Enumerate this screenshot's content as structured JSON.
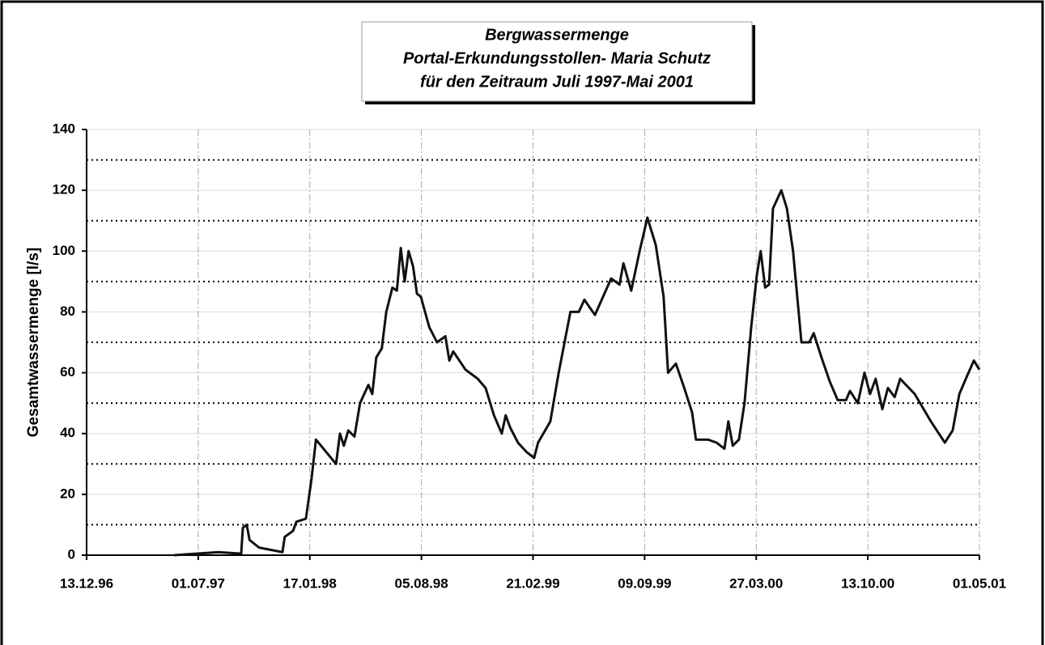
{
  "chart_data": {
    "type": "line",
    "title": [
      "Bergwassermenge",
      "Portal-Erkundungsstollen- Maria Schutz",
      "für den Zeitraum Juli 1997-Mai 2001"
    ],
    "y_label": "Gesamtwassermenge [l/s]",
    "xlim": [
      "1996-12-13",
      "2001-05-01"
    ],
    "xticks": [
      {
        "value": "1996-12-13",
        "label": "13.12.96"
      },
      {
        "value": "1997-07-01",
        "label": "01.07.97"
      },
      {
        "value": "1998-01-17",
        "label": "17.01.98"
      },
      {
        "value": "1998-08-05",
        "label": "05.08.98"
      },
      {
        "value": "1999-02-21",
        "label": "21.02.99"
      },
      {
        "value": "1999-09-09",
        "label": "09.09.99"
      },
      {
        "value": "2000-03-27",
        "label": "27.03.00"
      },
      {
        "value": "2000-10-13",
        "label": "13.10.00"
      },
      {
        "value": "2001-05-01",
        "label": "01.05.01"
      }
    ],
    "ylim": [
      0,
      140
    ],
    "yticks": [
      0,
      20,
      40,
      60,
      80,
      100,
      120,
      140
    ],
    "ygrid_minor": [
      10,
      30,
      50,
      70,
      90,
      110,
      130
    ],
    "grid": true,
    "series": [
      {
        "color": "#111111",
        "x": [
          "1997-05-19",
          "1997-08-06",
          "1997-09-16",
          "1997-09-19",
          "1997-09-26",
          "1997-10-01",
          "1997-10-18",
          "1997-11-29",
          "1997-12-03",
          "1997-12-18",
          "1997-12-24",
          "1998-01-10",
          "1998-01-20",
          "1998-01-28",
          "1998-03-05",
          "1998-03-12",
          "1998-03-19",
          "1998-03-27",
          "1998-04-07",
          "1998-04-17",
          "1998-05-02",
          "1998-05-09",
          "1998-05-16",
          "1998-05-26",
          "1998-06-03",
          "1998-06-14",
          "1998-06-22",
          "1998-06-29",
          "1998-07-06",
          "1998-07-13",
          "1998-07-21",
          "1998-07-28",
          "1998-08-04",
          "1998-08-19",
          "1998-09-02",
          "1998-09-17",
          "1998-09-24",
          "1998-10-01",
          "1998-10-23",
          "1998-11-14",
          "1998-11-28",
          "1998-12-13",
          "1998-12-27",
          "1999-01-03",
          "1999-01-11",
          "1999-01-25",
          "1999-02-09",
          "1999-02-23",
          "1999-03-02",
          "1999-03-24",
          "1999-04-08",
          "1999-04-29",
          "1999-05-14",
          "1999-05-24",
          "1999-06-12",
          "1999-07-11",
          "1999-07-26",
          "1999-08-02",
          "1999-08-16",
          "1999-08-31",
          "1999-09-14",
          "1999-09-29",
          "1999-10-13",
          "1999-10-21",
          "1999-11-04",
          "1999-11-19",
          "1999-12-03",
          "1999-12-10",
          "2000-01-01",
          "2000-01-16",
          "2000-01-30",
          "2000-02-06",
          "2000-02-14",
          "2000-02-25",
          "2000-03-06",
          "2000-03-18",
          "2000-03-28",
          "2000-04-04",
          "2000-04-12",
          "2000-04-19",
          "2000-04-26",
          "2000-05-11",
          "2000-05-21",
          "2000-06-01",
          "2000-06-16",
          "2000-06-30",
          "2000-07-08",
          "2000-07-22",
          "2000-08-06",
          "2000-08-20",
          "2000-09-04",
          "2000-09-11",
          "2000-09-25",
          "2000-10-07",
          "2000-10-17",
          "2000-10-27",
          "2000-11-08",
          "2000-11-18",
          "2000-11-30",
          "2000-12-10",
          "2001-01-05",
          "2001-02-03",
          "2001-02-28",
          "2001-03-14",
          "2001-03-26",
          "2001-04-09",
          "2001-04-21",
          "2001-05-01"
        ],
        "values": [
          0,
          1,
          0.5,
          9,
          10,
          5,
          2.5,
          1,
          6,
          8,
          11,
          12,
          25,
          38,
          30,
          40,
          36,
          41,
          39,
          50,
          56,
          53,
          65,
          68,
          80,
          88,
          87,
          101,
          90,
          100,
          95,
          86,
          85,
          75,
          70,
          72,
          64,
          67,
          61,
          58,
          55,
          46,
          40,
          46,
          42,
          37,
          34,
          32,
          37,
          44,
          60,
          80,
          80,
          84,
          79,
          91,
          89,
          96,
          87,
          100,
          111,
          102,
          85,
          60,
          63,
          55,
          47,
          38,
          38,
          37,
          35,
          44,
          36,
          38,
          50,
          75,
          92,
          100,
          88,
          89,
          114,
          120,
          114,
          100,
          70,
          70,
          73,
          65,
          57,
          51,
          51,
          54,
          50,
          60,
          53,
          58,
          48,
          55,
          52,
          58,
          53,
          44,
          37,
          41,
          53,
          59,
          64,
          61
        ]
      }
    ]
  }
}
